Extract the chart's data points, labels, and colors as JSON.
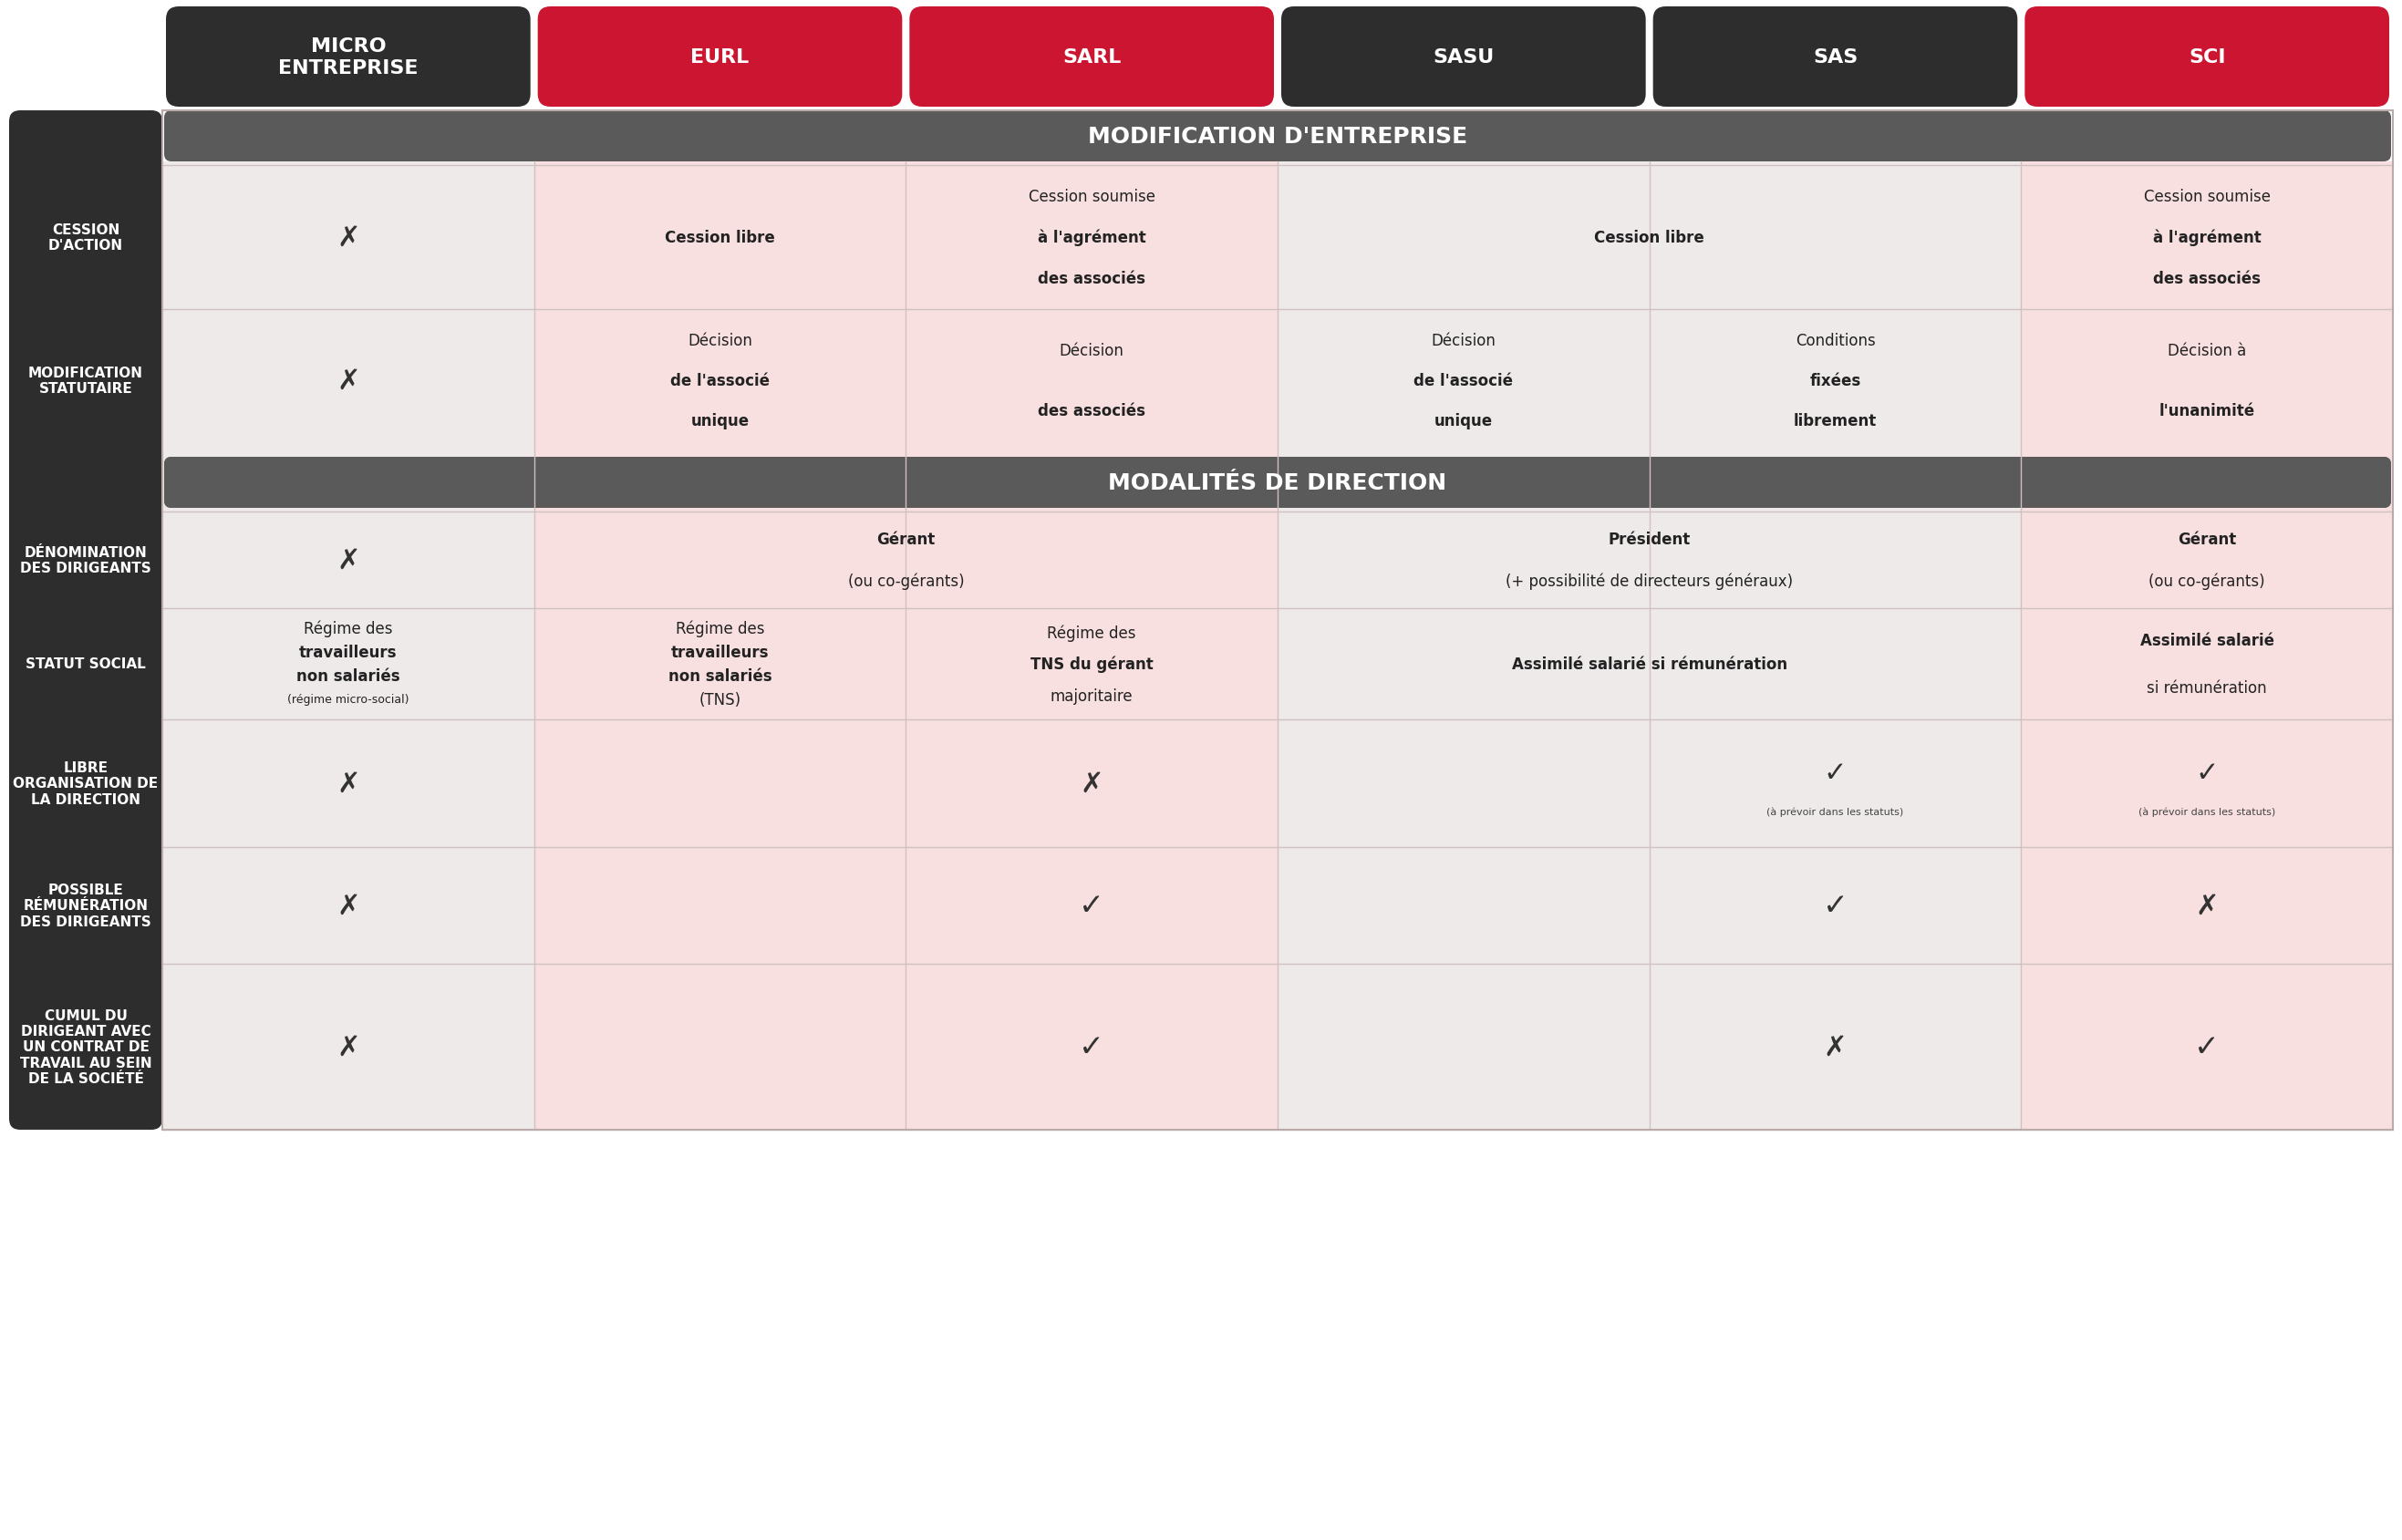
{
  "fig_width": 26.34,
  "fig_height": 16.9,
  "bg_color": "#ffffff",
  "left_panel_color": "#2d2d2d",
  "left_panel_text_color": "#ffffff",
  "header_dark_color": "#2d2d2d",
  "header_red_color": "#cc1530",
  "section_header_color": "#5a5a5a",
  "section_header_text_color": "#ffffff",
  "col_light_bg": "#eeeaea",
  "col_pink_bg": "#f9e0e0",
  "sep_color": "#d0c0c0",
  "columns": [
    "MICRO\nENTREPRISE",
    "EURL",
    "SARL",
    "SASU",
    "SAS",
    "SCI"
  ],
  "col_colors": [
    "dark",
    "red",
    "red",
    "dark",
    "dark",
    "red"
  ],
  "rows": [
    "CESSION\nD'ACTION",
    "MODIFICATION\nSTATUTAIRE",
    "DÉNOMINATION\nDES DIRIGEANTS",
    "STATUT SOCIAL",
    "LIBRE\nORGANISATION DE\nLA DIRECTION",
    "POSSIBLE\nRÉMUNÉRATION\nDES DIRIGEANTS",
    "CUMUL DU\nDIRIGEANT AVEC\nUN CONTRAT DE\nTRAVAIL AU SEIN\nDE LA SOCIÉTÉ"
  ],
  "section1_label": "MODIFICATION D'ENTREPRISE",
  "section2_label": "MODALITÉS DE DIRECTION",
  "cells": {
    "0_0": {
      "lines": [
        "✗"
      ],
      "bold": []
    },
    "0_1": {
      "lines": [
        "Cession libre"
      ],
      "bold": [
        "libre"
      ],
      "pink": true
    },
    "0_2": {
      "lines": [
        "Cession soumise",
        "à l'agrément",
        "des associés"
      ],
      "bold": [
        "agrément",
        "des associés"
      ],
      "pink": true
    },
    "0_3": {
      "lines": [
        "Cession libre"
      ],
      "bold": [
        "libre"
      ],
      "colspan": 2
    },
    "0_4": {
      "merged": true
    },
    "0_5": {
      "lines": [
        "Cession soumise",
        "à l'agrément",
        "des associés"
      ],
      "bold": [
        "agrément",
        "des associés"
      ],
      "pink": true
    },
    "1_0": {
      "lines": [
        "✗"
      ],
      "bold": []
    },
    "1_1": {
      "lines": [
        "Décision",
        "de l'associé",
        "unique"
      ],
      "bold": [
        "de l'associé",
        "unique"
      ],
      "pink": true
    },
    "1_2": {
      "lines": [
        "Décision",
        "des associés"
      ],
      "bold": [
        "des associés"
      ],
      "pink": true
    },
    "1_3": {
      "lines": [
        "Décision",
        "de l'associé",
        "unique"
      ],
      "bold": [
        "de l'associé",
        "unique"
      ]
    },
    "1_4": {
      "lines": [
        "Conditions",
        "fixées",
        "librement"
      ],
      "bold": [
        "fixées",
        "librement"
      ]
    },
    "1_5": {
      "lines": [
        "Décision à",
        "l'unanimité"
      ],
      "bold": [
        "l'unanimité"
      ],
      "pink": true
    },
    "2_0": {
      "lines": [
        "✗"
      ],
      "bold": []
    },
    "2_1": {
      "lines": [
        "Gérant",
        "(ou co-gérants)"
      ],
      "bold": [
        "Gérant"
      ],
      "colspan": 2,
      "pink": true
    },
    "2_2": {
      "merged": true
    },
    "2_3": {
      "lines": [
        "Président",
        "(+ possibilité de directeurs généraux)"
      ],
      "bold": [
        "Président"
      ],
      "colspan": 2
    },
    "2_4": {
      "merged": true
    },
    "2_5": {
      "lines": [
        "Gérant",
        "(ou co-gérants)"
      ],
      "bold": [
        "Gérant"
      ],
      "pink": true
    },
    "3_0": {
      "lines": [
        "Régime des",
        "travailleurs",
        "non salariés",
        "(régime micro-social)"
      ],
      "bold": [
        "travailleurs",
        "non salariés"
      ],
      "small": [
        "(régime micro-social)"
      ]
    },
    "3_1": {
      "lines": [
        "Régime des",
        "travailleurs",
        "non salariés",
        "(TNS)"
      ],
      "bold": [
        "travailleurs",
        "non salariés"
      ],
      "pink": true
    },
    "3_2": {
      "lines": [
        "Régime des",
        "TNS du gérant",
        "majoritaire"
      ],
      "bold": [
        "TNS"
      ],
      "pink": true
    },
    "3_3": {
      "lines": [
        "Assimilé salarié si rémunération"
      ],
      "bold": [
        "Assimilé salarié"
      ],
      "colspan": 2
    },
    "3_4": {
      "merged": true
    },
    "3_5": {
      "lines": [
        "Assimilé salarié",
        "si rémunération"
      ],
      "bold": [
        "Assimilé salarié"
      ],
      "pink": true
    },
    "4_0": {
      "lines": [
        "✗"
      ],
      "bold": []
    },
    "4_1": {
      "lines": [],
      "bold": [],
      "pink": true
    },
    "4_2": {
      "lines": [
        "✗"
      ],
      "bold": [],
      "pink": true
    },
    "4_3": {
      "lines": [],
      "bold": []
    },
    "4_4": {
      "lines": [
        "✓",
        "(à prévoir dans les statuts)"
      ],
      "bold": [],
      "small": [
        "(à prévoir dans les statuts)"
      ]
    },
    "4_5": {
      "lines": [
        "✓",
        "(à prévoir dans les",
        "statuts)"
      ],
      "bold": [],
      "small": [
        "(à prévoir dans les",
        "statuts)"
      ],
      "pink": true
    },
    "5_0": {
      "lines": [
        "✗"
      ],
      "bold": []
    },
    "5_1": {
      "lines": [],
      "bold": [],
      "pink": true
    },
    "5_2": {
      "lines": [
        "✓"
      ],
      "bold": [],
      "pink": true
    },
    "5_3": {
      "lines": [],
      "bold": []
    },
    "5_4": {
      "lines": [
        "✓"
      ],
      "bold": []
    },
    "5_5": {
      "lines": [
        "✗"
      ],
      "bold": [],
      "pink": true
    },
    "6_0": {
      "lines": [
        "✗"
      ],
      "bold": []
    },
    "6_1": {
      "lines": [],
      "bold": [],
      "pink": true
    },
    "6_2": {
      "lines": [
        "✓"
      ],
      "bold": [],
      "pink": true
    },
    "6_3": {
      "lines": [],
      "bold": []
    },
    "6_4": {
      "lines": [
        "✗"
      ],
      "bold": []
    },
    "6_5": {
      "lines": [
        "✓"
      ],
      "bold": [],
      "pink": true
    }
  }
}
